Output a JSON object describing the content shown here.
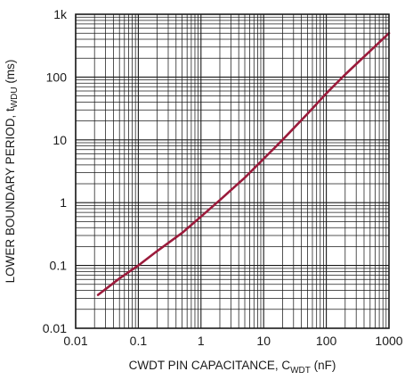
{
  "chart_data": {
    "type": "line",
    "xlabel": {
      "main": "CWDT PIN CAPACITANCE, C",
      "sub": "WDT",
      "unit": " (nF)"
    },
    "ylabel": {
      "main": "LOWER BOUNDARY PERIOD, t",
      "sub": "WDU",
      "unit": " (ms)"
    },
    "x_scale": "log",
    "y_scale": "log",
    "xlim": [
      0.01,
      1000
    ],
    "ylim": [
      0.01,
      1000
    ],
    "x_ticks": [
      {
        "value": 0.01,
        "label": "0.01"
      },
      {
        "value": 0.1,
        "label": "0.1"
      },
      {
        "value": 1,
        "label": "1"
      },
      {
        "value": 10,
        "label": "10"
      },
      {
        "value": 100,
        "label": "100"
      },
      {
        "value": 1000,
        "label": "1000"
      }
    ],
    "y_ticks": [
      {
        "value": 0.01,
        "label": "0.01"
      },
      {
        "value": 0.1,
        "label": "0.1"
      },
      {
        "value": 1,
        "label": "1"
      },
      {
        "value": 10,
        "label": "10"
      },
      {
        "value": 100,
        "label": "100"
      },
      {
        "value": 1000,
        "label": "1k"
      }
    ],
    "grid": true,
    "series": [
      {
        "color": "#9b1b3b",
        "x": [
          0.0227,
          0.05,
          0.1,
          0.2,
          0.5,
          1,
          2,
          5,
          10,
          20,
          50,
          100,
          200,
          500,
          1000
        ],
        "y": [
          0.034,
          0.062,
          0.1,
          0.17,
          0.33,
          0.6,
          1.1,
          2.5,
          5,
          10,
          26,
          55,
          110,
          260,
          500
        ]
      }
    ]
  }
}
